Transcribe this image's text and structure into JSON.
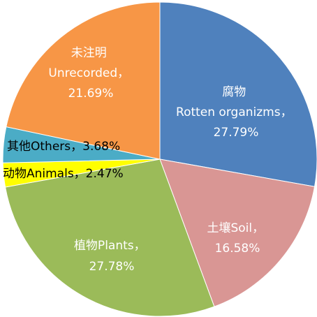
{
  "chart_data": {
    "type": "pie",
    "title": "",
    "legend": "none",
    "slices": [
      {
        "key": "rotten",
        "name": "腐物Rotten organizms",
        "value": 27.79,
        "percent_label": "27.79%",
        "color": "#4f81bd"
      },
      {
        "key": "soil",
        "name": "土壤Soil",
        "value": 16.58,
        "percent_label": "16.58%",
        "color": "#d99694"
      },
      {
        "key": "plants",
        "name": "植物Plants",
        "value": 27.78,
        "percent_label": "27.78%",
        "color": "#9bbb59"
      },
      {
        "key": "animals",
        "name": "动物Animals",
        "value": 2.47,
        "percent_label": "2.47%",
        "color": "#ffff00"
      },
      {
        "key": "others",
        "name": "其他Others",
        "value": 3.68,
        "percent_label": "3.68%",
        "color": "#4bacc6"
      },
      {
        "key": "unrecorded",
        "name": "未注明Unrecorded",
        "value": 21.69,
        "percent_label": "21.69%",
        "color": "#f79646"
      }
    ]
  },
  "labels": {
    "rotten": {
      "line1": "腐物",
      "line2": "Rotten organizms，",
      "line3": "27.79%",
      "color": "#ffffff"
    },
    "soil": {
      "line1": "土壤Soil，",
      "line2": "16.58%",
      "color": "#ffffff"
    },
    "plants": {
      "line1": "植物Plants，",
      "line2": "27.78%",
      "color": "#ffffff"
    },
    "animals": {
      "line1": "动物Animals，2.47%",
      "color": "#000000"
    },
    "others": {
      "line1": "其他Others，3.68%",
      "color": "#000000"
    },
    "unrecorded": {
      "line1": "未注明",
      "line2": "Unrecorded，",
      "line3": "21.69%",
      "color": "#ffffff"
    }
  }
}
